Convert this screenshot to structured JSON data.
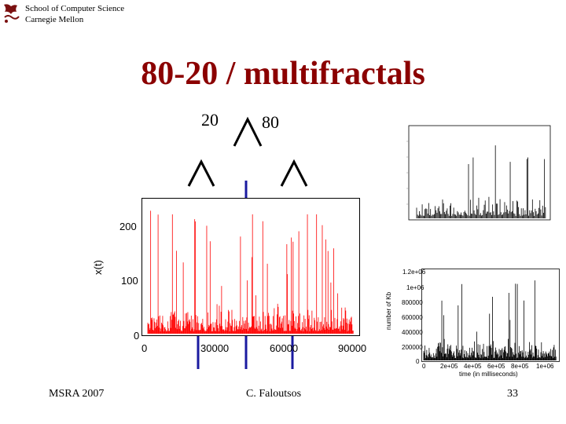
{
  "header": {
    "line1": "School of Computer Science",
    "line2": "Carnegie Mellon"
  },
  "slide": {
    "title": "80-20 / multifractals",
    "label_left": "20",
    "label_right": "80"
  },
  "footer": {
    "left": "MSRA 2007",
    "center": "C. Faloutsos",
    "page": "33"
  },
  "colors": {
    "title": "#8b0000",
    "spikes": "#ff0000",
    "divider_lines": "#1a1aa0"
  },
  "chart_data": [
    {
      "type": "bar",
      "ylabel": "x(t)",
      "xticks": [
        "0",
        "30000",
        "60000",
        "90000"
      ],
      "yticks": [
        "0",
        "100",
        "200"
      ],
      "xlim": [
        0,
        90000
      ],
      "ylim": [
        0,
        200
      ]
    },
    {
      "type": "bar",
      "ylabel": "number of Kb",
      "xlabel": "time (in milliseconds)",
      "xticks": [
        "0",
        "2e+05",
        "4e+05",
        "6e+05",
        "8e+05",
        "1e+06"
      ],
      "yticks": [
        "0",
        "200000",
        "400000",
        "600000",
        "800000",
        "1e+06",
        "1.2e+06"
      ]
    }
  ]
}
